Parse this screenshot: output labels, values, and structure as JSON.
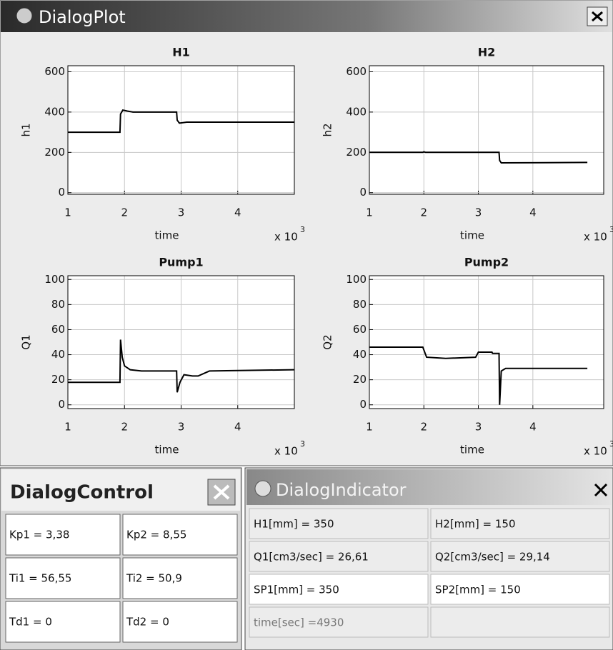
{
  "windows": {
    "plot": "DialogPlot",
    "control": "DialogControl",
    "indicator": "DialogIndicator"
  },
  "chart_data": [
    {
      "type": "line",
      "title": "H1",
      "ylabel": "h1",
      "xlabel": "time",
      "x_scale": "x 10",
      "x_scale_exp": "3",
      "x": [
        1,
        1.92,
        1.93,
        1.97,
        2.05,
        2.15,
        2.92,
        2.93,
        2.97,
        3.1,
        5
      ],
      "values": [
        300,
        300,
        390,
        410,
        405,
        400,
        400,
        360,
        345,
        350,
        350
      ],
      "color": "#000000",
      "xlim": [
        1,
        5
      ],
      "ylim": [
        -8,
        630
      ],
      "xticks": [
        1,
        2,
        3,
        4
      ],
      "yticks": [
        0,
        200,
        400,
        600
      ],
      "grid": true
    },
    {
      "type": "line",
      "title": "H2",
      "ylabel": "h2",
      "xlabel": "time",
      "x_scale": "x 10",
      "x_scale_exp": "3",
      "x": [
        1,
        1.98,
        2.0,
        2.03,
        3.38,
        3.39,
        3.42,
        5
      ],
      "values": [
        200,
        200,
        203,
        200,
        200,
        160,
        148,
        150
      ],
      "color": "#000000",
      "xlim": [
        1,
        5.3
      ],
      "ylim": [
        -8,
        630
      ],
      "xticks": [
        1,
        2,
        3,
        4
      ],
      "yticks": [
        0,
        200,
        400,
        600
      ],
      "grid": true
    },
    {
      "type": "line",
      "title": "Pump1",
      "ylabel": "Q1",
      "xlabel": "time",
      "x_scale": "x 10",
      "x_scale_exp": "3",
      "x": [
        1,
        1.92,
        1.93,
        1.96,
        2.0,
        2.1,
        2.3,
        2.92,
        2.93,
        2.98,
        3.05,
        3.2,
        3.3,
        3.5,
        5
      ],
      "values": [
        18,
        18,
        52,
        38,
        31,
        28,
        27,
        27,
        10,
        18,
        24,
        23,
        23,
        27,
        28
      ],
      "color": "#000000",
      "xlim": [
        1,
        5
      ],
      "ylim": [
        -3,
        103
      ],
      "xticks": [
        1,
        2,
        3,
        4
      ],
      "yticks": [
        0,
        20,
        40,
        60,
        80,
        100
      ],
      "grid": true
    },
    {
      "type": "line",
      "title": "Pump2",
      "ylabel": "Q2",
      "xlabel": "time",
      "x_scale": "x 10",
      "x_scale_exp": "3",
      "x": [
        1,
        1.98,
        2.05,
        2.4,
        2.95,
        3.0,
        3.25,
        3.26,
        3.38,
        3.39,
        3.42,
        3.5,
        5
      ],
      "values": [
        46,
        46,
        38,
        37,
        38,
        42,
        42,
        41,
        41,
        0,
        27,
        29,
        29
      ],
      "color": "#000000",
      "xlim": [
        1,
        5.3
      ],
      "ylim": [
        -3,
        103
      ],
      "xticks": [
        1,
        2,
        3,
        4
      ],
      "yticks": [
        0,
        20,
        40,
        60,
        80,
        100
      ],
      "grid": true
    }
  ],
  "control": [
    [
      "Kp1 = 3,38",
      "Kp2 = 8,55"
    ],
    [
      "Ti1 = 56,55",
      "Ti2 = 50,9"
    ],
    [
      "Td1 = 0",
      "Td2 = 0"
    ]
  ],
  "indicator": [
    [
      "H1[mm] = 350",
      "H2[mm] = 150"
    ],
    [
      "Q1[cm3/sec] = 26,61",
      "Q2[cm3/sec] = 29,14"
    ],
    [
      "SP1[mm] = 350",
      "SP2[mm] = 150"
    ],
    [
      "time[sec] =4930"
    ]
  ]
}
